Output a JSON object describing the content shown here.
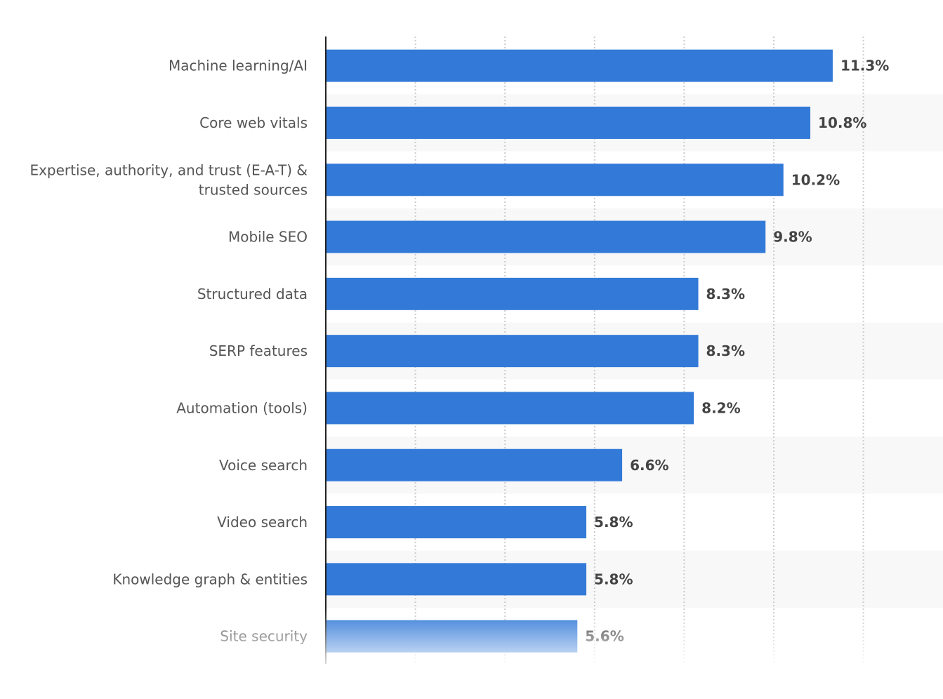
{
  "chart_data": {
    "type": "bar",
    "orientation": "horizontal",
    "categories": [
      "Machine learning/AI",
      "Core web vitals",
      [
        "Expertise, authority, and trust (E-A-T) &",
        "trusted sources"
      ],
      "Mobile SEO",
      "Structured data",
      "SERP features",
      "Automation (tools)",
      "Voice search",
      "Video search",
      "Knowledge graph & entities",
      "Site security"
    ],
    "values": [
      11.3,
      10.8,
      10.2,
      9.8,
      8.3,
      8.3,
      8.2,
      6.6,
      5.8,
      5.8,
      5.6
    ],
    "value_labels": [
      "11.3%",
      "10.8%",
      "10.2%",
      "9.8%",
      "8.3%",
      "8.3%",
      "8.2%",
      "6.6%",
      "5.8%",
      "5.8%",
      "5.6%"
    ],
    "xlim": [
      0,
      13.8
    ],
    "x_gridlines": [
      2,
      4,
      6,
      8,
      10,
      12
    ],
    "grid": true,
    "legend": "none",
    "colors": {
      "bar": "#337ad8",
      "stripe": "#f8f8f8",
      "grid": "#cccccc",
      "axis": "#222222"
    }
  }
}
